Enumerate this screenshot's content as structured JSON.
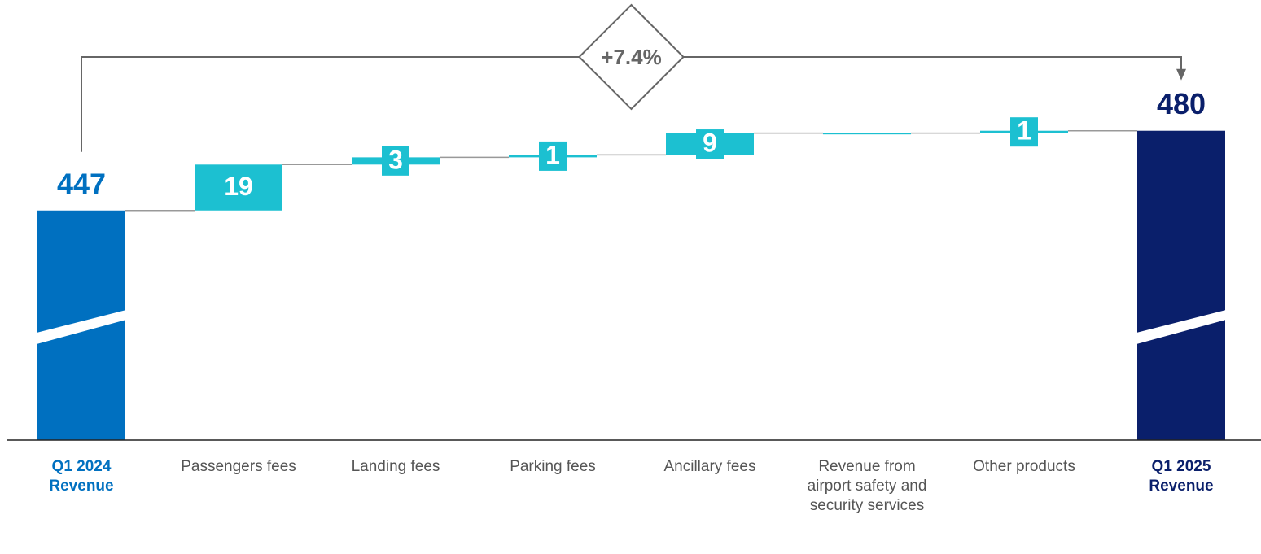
{
  "chart_data": {
    "type": "waterfall",
    "annotation": "+7.4%",
    "categories": [
      "Q1 2024 Revenue",
      "Passengers fees",
      "Landing fees",
      "Parking fees",
      "Ancillary fees",
      "Revenue from airport safety and security services",
      "Other products",
      "Q1 2025 Revenue"
    ],
    "values": [
      447,
      19,
      3,
      1,
      9,
      0,
      1,
      480
    ],
    "value_labels": [
      "447",
      "19",
      "3",
      "1",
      "9",
      null,
      "1",
      "480"
    ],
    "totals": [
      true,
      false,
      false,
      false,
      false,
      false,
      false,
      true
    ],
    "colors": [
      "#0070c0",
      "#1cc0d1",
      "#1cc0d1",
      "#1cc0d1",
      "#1cc0d1",
      "#1cc0d1",
      "#1cc0d1",
      "#0a1f6b"
    ],
    "ylim": [
      352,
      490
    ],
    "axis_break": true
  }
}
